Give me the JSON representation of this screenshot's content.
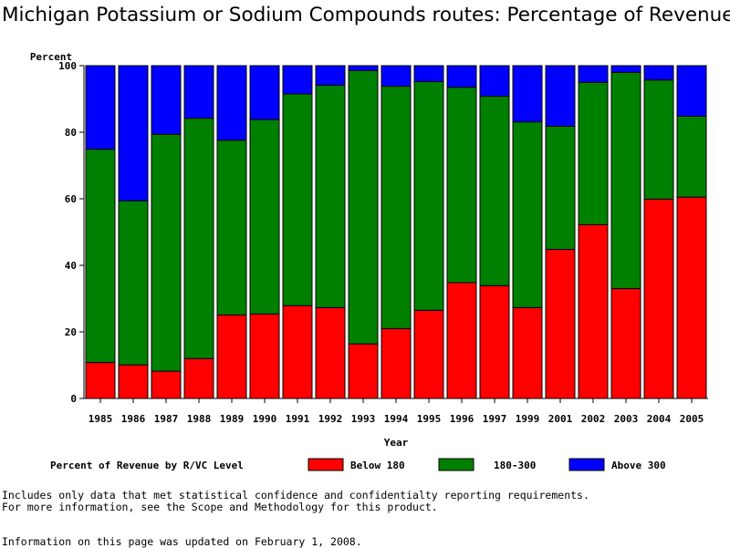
{
  "chart_data": {
    "type": "bar",
    "stacked": true,
    "title": "Michigan Potassium or Sodium Compounds routes: Percentage of Revenue",
    "xlabel": "Year",
    "ylabel": "Percent",
    "ylim": [
      0,
      100
    ],
    "yticks": [
      0,
      20,
      40,
      60,
      80,
      100
    ],
    "grid": false,
    "legend_title": "Percent of Revenue by R/VC Level",
    "legend_position": "bottom",
    "categories": [
      "1985",
      "1986",
      "1987",
      "1988",
      "1989",
      "1990",
      "1991",
      "1992",
      "1993",
      "1994",
      "1995",
      "1996",
      "1997",
      "1999",
      "2001",
      "2002",
      "2003",
      "2004",
      "2005"
    ],
    "series": [
      {
        "name": "Below 180",
        "color": "#ff0000",
        "values": [
          10.8,
          10.1,
          8.2,
          12.0,
          25.1,
          25.4,
          27.9,
          27.3,
          16.4,
          21.0,
          26.5,
          34.8,
          33.9,
          27.3,
          44.8,
          52.2,
          33.0,
          59.9,
          60.5
        ]
      },
      {
        "name": "180-300",
        "color": "#008000",
        "values": [
          64.1,
          49.3,
          71.2,
          72.2,
          52.5,
          58.4,
          63.6,
          66.8,
          82.1,
          72.8,
          68.7,
          58.7,
          56.9,
          55.8,
          37.0,
          42.8,
          65.0,
          35.8,
          24.3
        ]
      },
      {
        "name": "Above 300",
        "color": "#0000ff",
        "values": [
          25.1,
          40.6,
          20.6,
          15.8,
          22.4,
          16.2,
          8.5,
          5.9,
          1.5,
          6.2,
          4.8,
          6.5,
          9.2,
          16.9,
          18.2,
          5.0,
          2.0,
          4.3,
          15.2
        ]
      }
    ]
  },
  "footnotes": {
    "line1": "Includes only data that met statistical confidence and confidentialty reporting requirements.",
    "line2": "For more information, see the Scope and Methodology for this product.",
    "updated": "Information on this page was updated on February 1, 2008."
  }
}
